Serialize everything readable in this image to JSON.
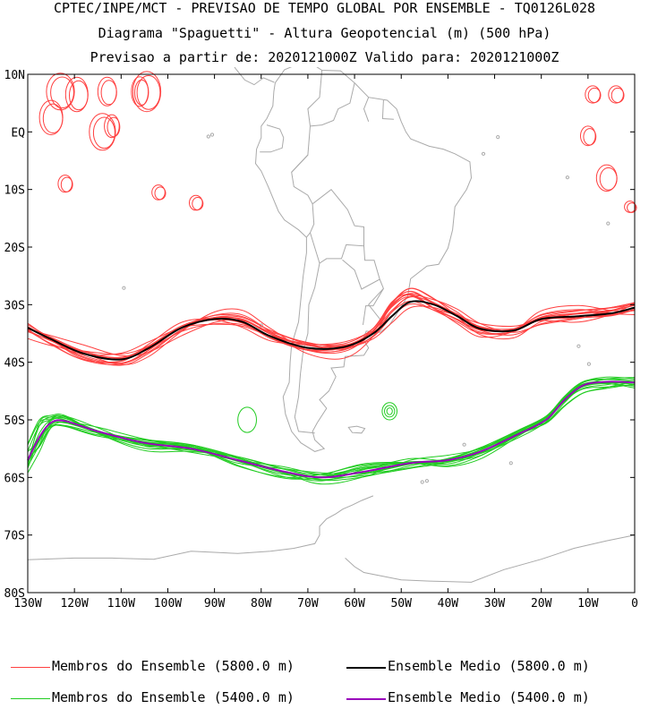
{
  "header": {
    "line1": "CPTEC/INPE/MCT - PREVISAO DE TEMPO GLOBAL POR ENSEMBLE - TQ0126L028",
    "line2": "Diagrama \"Spaguetti\" - Altura Geopotencial (m) (500 hPa)",
    "line3": "Previsao a partir de: 2020121000Z  Valido para: 2020121000Z"
  },
  "map": {
    "lat_labels": [
      "10N",
      "EQ",
      "10S",
      "20S",
      "30S",
      "40S",
      "50S",
      "60S",
      "70S",
      "80S"
    ],
    "lon_labels": [
      "130W",
      "120W",
      "110W",
      "100W",
      "90W",
      "80W",
      "70W",
      "60W",
      "50W",
      "40W",
      "30W",
      "20W",
      "10W",
      "0"
    ],
    "lat_range": [
      10,
      -80
    ],
    "lon_range": [
      -130,
      0
    ],
    "colors": {
      "member_5800": "#ff4040",
      "mean_5800": "#000000",
      "member_5400": "#22cc22",
      "mean_5400": "#9900bb",
      "coast": "#aaaaaa"
    }
  },
  "contours": {
    "mean_5800": [
      [
        -130,
        -34
      ],
      [
        -125,
        -36
      ],
      [
        -118,
        -38.5
      ],
      [
        -110,
        -39.5
      ],
      [
        -104,
        -37.5
      ],
      [
        -97,
        -34
      ],
      [
        -90,
        -32.5
      ],
      [
        -84,
        -33
      ],
      [
        -78,
        -35.5
      ],
      [
        -70,
        -37.5
      ],
      [
        -62,
        -37.3
      ],
      [
        -56,
        -35
      ],
      [
        -52,
        -32
      ],
      [
        -48,
        -29.5
      ],
      [
        -43,
        -30
      ],
      [
        -38,
        -32
      ],
      [
        -33,
        -34.2
      ],
      [
        -26,
        -34.5
      ],
      [
        -20,
        -32.5
      ],
      [
        -12,
        -32
      ],
      [
        -5,
        -31.5
      ],
      [
        0,
        -30.5
      ]
    ],
    "mean_5400": [
      [
        -130,
        -57
      ],
      [
        -127.5,
        -53
      ],
      [
        -125,
        -50.5
      ],
      [
        -122,
        -50.2
      ],
      [
        -115,
        -52
      ],
      [
        -105,
        -54
      ],
      [
        -95,
        -55
      ],
      [
        -85,
        -57
      ],
      [
        -75,
        -59
      ],
      [
        -67,
        -60
      ],
      [
        -58,
        -59
      ],
      [
        -48,
        -57.5
      ],
      [
        -40,
        -57
      ],
      [
        -33,
        -55.5
      ],
      [
        -25,
        -52.5
      ],
      [
        -19,
        -50
      ],
      [
        -15,
        -46.5
      ],
      [
        -11,
        -44
      ],
      [
        -6,
        -43.4
      ],
      [
        0,
        -43.5
      ]
    ]
  },
  "legend": {
    "members_5800": "Membros do Ensemble (5800.0 m)",
    "mean_5800": "Ensemble Medio (5800.0 m)",
    "members_5400": "Membros do Ensemble (5400.0 m)",
    "mean_5400": "Ensemble Medio (5400.0 m)"
  }
}
